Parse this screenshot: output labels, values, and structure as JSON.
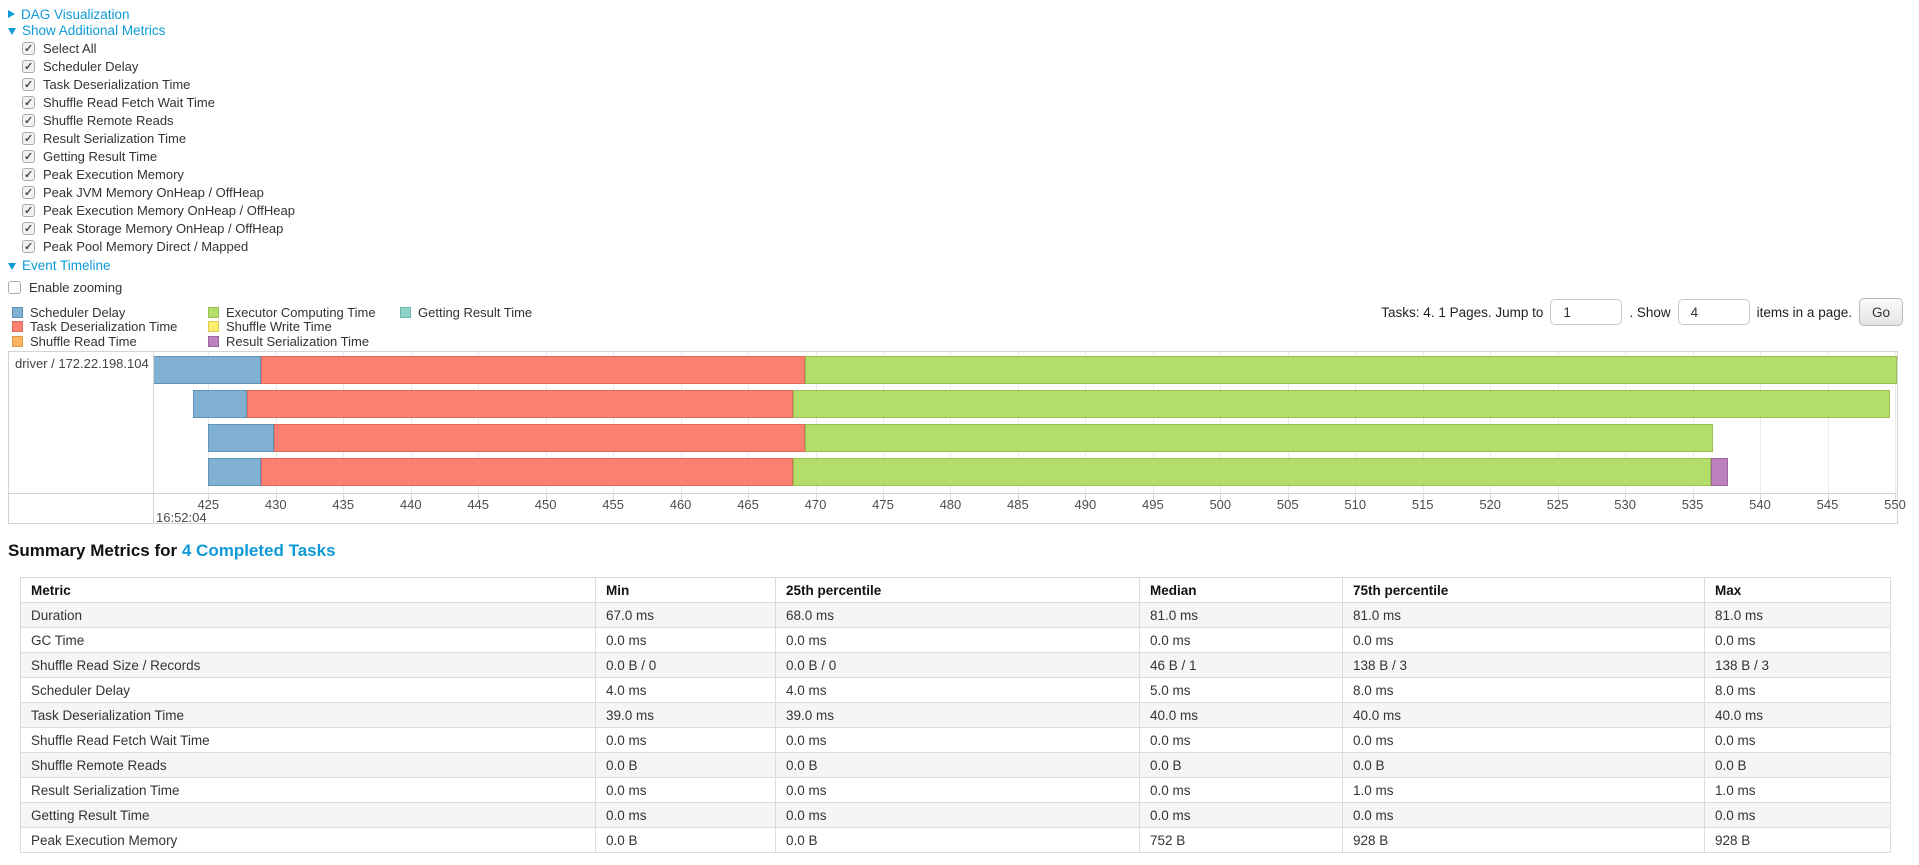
{
  "sections": {
    "dag": {
      "label": "DAG Visualization",
      "state": "collapsed"
    },
    "additional_metrics": {
      "label": "Show Additional Metrics",
      "state": "expanded"
    },
    "event_timeline": {
      "label": "Event Timeline",
      "state": "expanded"
    }
  },
  "metric_checkboxes": [
    {
      "label": "Select All",
      "checked": true
    },
    {
      "label": "Scheduler Delay",
      "checked": true
    },
    {
      "label": "Task Deserialization Time",
      "checked": true
    },
    {
      "label": "Shuffle Read Fetch Wait Time",
      "checked": true
    },
    {
      "label": "Shuffle Remote Reads",
      "checked": true
    },
    {
      "label": "Result Serialization Time",
      "checked": true
    },
    {
      "label": "Getting Result Time",
      "checked": true
    },
    {
      "label": "Peak Execution Memory",
      "checked": true
    },
    {
      "label": "Peak JVM Memory OnHeap / OffHeap",
      "checked": true
    },
    {
      "label": "Peak Execution Memory OnHeap / OffHeap",
      "checked": true
    },
    {
      "label": "Peak Storage Memory OnHeap / OffHeap",
      "checked": true
    },
    {
      "label": "Peak Pool Memory Direct / Mapped",
      "checked": true
    }
  ],
  "enable_zooming": {
    "label": "Enable zooming",
    "checked": false
  },
  "colors": {
    "link": "#0d9ad7",
    "scheduler_delay": "#80B1D3",
    "scheduler_delay_stroke": "#5E94BC",
    "task_deserialization": "#FB8072",
    "task_deserialization_stroke": "#E06A5D",
    "shuffle_read": "#FDB462",
    "shuffle_read_stroke": "#DD9848",
    "executor_computing": "#B3DE69",
    "executor_computing_stroke": "#98C152",
    "shuffle_write": "#FFED6F",
    "shuffle_write_stroke": "#DECB55",
    "result_serialization": "#BC80BD",
    "result_serialization_stroke": "#9D659E",
    "getting_result": "#8DD3C7",
    "getting_result_stroke": "#6FB5A9"
  },
  "legend": {
    "columns": [
      [
        {
          "key": "scheduler_delay",
          "label": "Scheduler Delay"
        },
        {
          "key": "task_deserialization",
          "label": "Task Deserialization Time"
        },
        {
          "key": "shuffle_read",
          "label": "Shuffle Read Time"
        }
      ],
      [
        {
          "key": "executor_computing",
          "label": "Executor Computing Time"
        },
        {
          "key": "shuffle_write",
          "label": "Shuffle Write Time"
        },
        {
          "key": "result_serialization",
          "label": "Result Serialization Time"
        }
      ],
      [
        {
          "key": "getting_result",
          "label": "Getting Result Time"
        }
      ]
    ]
  },
  "pagination": {
    "prefix": "Tasks: 4. 1 Pages. Jump to",
    "jump_value": "1",
    "show_connector": ". Show",
    "show_value": "4",
    "suffix": "items in a page.",
    "go_label": "Go"
  },
  "chart_data": {
    "type": "timeline",
    "group_label": "driver / 172.22.198.104",
    "axis": {
      "unit": "ms within second",
      "min": 420.9,
      "max": 550.15,
      "tick_start": 425,
      "tick_end": 550,
      "tick_step": 5,
      "major_label": "16:52:04"
    },
    "tasks": [
      {
        "segments": [
          {
            "key": "scheduler_delay",
            "start": 420.9,
            "end": 428.9
          },
          {
            "key": "task_deserialization",
            "start": 428.9,
            "end": 469.2
          },
          {
            "key": "executor_computing",
            "start": 469.2,
            "end": 550.15
          }
        ]
      },
      {
        "segments": [
          {
            "key": "scheduler_delay",
            "start": 423.9,
            "end": 427.9
          },
          {
            "key": "task_deserialization",
            "start": 427.9,
            "end": 468.3
          },
          {
            "key": "executor_computing",
            "start": 468.3,
            "end": 549.6
          }
        ]
      },
      {
        "segments": [
          {
            "key": "scheduler_delay",
            "start": 425.0,
            "end": 429.9
          },
          {
            "key": "task_deserialization",
            "start": 429.9,
            "end": 469.2
          },
          {
            "key": "executor_computing",
            "start": 469.2,
            "end": 536.5
          }
        ]
      },
      {
        "segments": [
          {
            "key": "scheduler_delay",
            "start": 425.0,
            "end": 428.9
          },
          {
            "key": "task_deserialization",
            "start": 428.9,
            "end": 468.3
          },
          {
            "key": "executor_computing",
            "start": 468.3,
            "end": 536.4
          },
          {
            "key": "result_serialization",
            "start": 536.4,
            "end": 537.6
          }
        ]
      }
    ]
  },
  "summary": {
    "title_prefix": "Summary Metrics for",
    "title_link": "4 Completed Tasks",
    "columns": [
      "Metric",
      "Min",
      "25th percentile",
      "Median",
      "75th percentile",
      "Max"
    ],
    "rows": [
      {
        "metric": "Duration",
        "values": [
          "67.0 ms",
          "68.0 ms",
          "81.0 ms",
          "81.0 ms",
          "81.0 ms"
        ]
      },
      {
        "metric": "GC Time",
        "values": [
          "0.0 ms",
          "0.0 ms",
          "0.0 ms",
          "0.0 ms",
          "0.0 ms"
        ]
      },
      {
        "metric": "Shuffle Read Size / Records",
        "values": [
          "0.0 B / 0",
          "0.0 B / 0",
          "46 B / 1",
          "138 B / 3",
          "138 B / 3"
        ]
      },
      {
        "metric": "Scheduler Delay",
        "values": [
          "4.0 ms",
          "4.0 ms",
          "5.0 ms",
          "8.0 ms",
          "8.0 ms"
        ]
      },
      {
        "metric": "Task Deserialization Time",
        "values": [
          "39.0 ms",
          "39.0 ms",
          "40.0 ms",
          "40.0 ms",
          "40.0 ms"
        ]
      },
      {
        "metric": "Shuffle Read Fetch Wait Time",
        "values": [
          "0.0 ms",
          "0.0 ms",
          "0.0 ms",
          "0.0 ms",
          "0.0 ms"
        ]
      },
      {
        "metric": "Shuffle Remote Reads",
        "values": [
          "0.0 B",
          "0.0 B",
          "0.0 B",
          "0.0 B",
          "0.0 B"
        ]
      },
      {
        "metric": "Result Serialization Time",
        "values": [
          "0.0 ms",
          "0.0 ms",
          "0.0 ms",
          "1.0 ms",
          "1.0 ms"
        ]
      },
      {
        "metric": "Getting Result Time",
        "values": [
          "0.0 ms",
          "0.0 ms",
          "0.0 ms",
          "0.0 ms",
          "0.0 ms"
        ]
      },
      {
        "metric": "Peak Execution Memory",
        "values": [
          "0.0 B",
          "0.0 B",
          "752 B",
          "928 B",
          "928 B"
        ]
      }
    ]
  }
}
